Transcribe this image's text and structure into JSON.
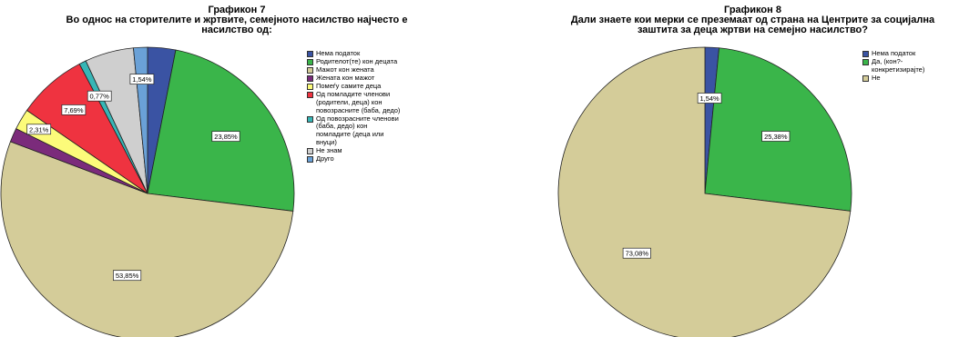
{
  "chart_data": [
    {
      "type": "pie",
      "title_lines": [
        "Графикон 7",
        "Во однос на сторителите и жртвите, семејното насилство најчесто е",
        "насилство од:"
      ],
      "legend_entries": [
        "Нема податок",
        "Родителот(те) кон децата",
        "Мажот кон жената",
        "Жената кон мажот",
        "Помеѓу самите деца",
        "Од помладите членови\n(родители, деца) кон\nповозрасните (баба, дедо)",
        "Од повозрасните членови\n(баба, дедо) кон\nпомладите (деца или\nвнуци)",
        "Не знам",
        "Друго"
      ],
      "colors": [
        "#3a53a3",
        "#3ab54a",
        "#d4cc99",
        "#7b2b7b",
        "#fcfb7a",
        "#ef3340",
        "#37b6b6",
        "#cfcfcf",
        "#6aa1d7"
      ],
      "values": [
        3.08,
        23.85,
        53.85,
        1.54,
        2.31,
        7.69,
        0.77,
        5.38,
        1.54
      ],
      "data_labels": [
        "",
        "23,85%",
        "53,85%",
        "",
        "2,31%",
        "7,69%",
        "0,77%",
        "",
        "1,54%"
      ],
      "legend_placement": "right"
    },
    {
      "type": "pie",
      "title_lines": [
        "Графикон 8",
        "Дали знаете кои мерки се преземаат од страна на Центрите за социјална",
        "заштита за деца жртви на семејно насилство?"
      ],
      "legend_entries": [
        "Нема податок",
        "Да, (кон?-\nконкретизирајте)",
        "Не"
      ],
      "colors": [
        "#3a53a3",
        "#3ab54a",
        "#d4cc99"
      ],
      "values": [
        1.54,
        25.38,
        73.08
      ],
      "data_labels": [
        "1,54%",
        "25,38%",
        "73,08%"
      ],
      "legend_placement": "right"
    }
  ]
}
